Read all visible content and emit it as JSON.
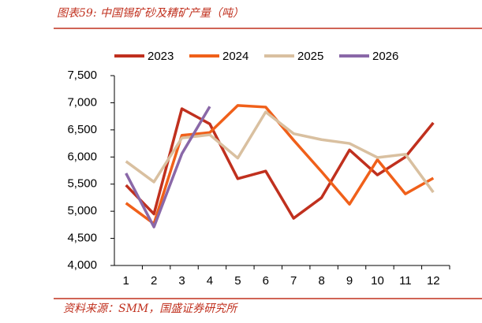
{
  "chart_data": {
    "type": "line",
    "title": "图表59:  中国锡矿砂及精矿产量（吨）",
    "source": "资料来源：SMM，国盛证券研究所",
    "categories": [
      "1",
      "2",
      "3",
      "4",
      "5",
      "6",
      "7",
      "8",
      "9",
      "10",
      "11",
      "12"
    ],
    "series": [
      {
        "name": "2023",
        "color": "#c0301e",
        "values": [
          5480,
          4950,
          6890,
          6610,
          5600,
          5740,
          4870,
          5250,
          6130,
          5670,
          6000,
          6630
        ]
      },
      {
        "name": "2024",
        "color": "#f0601a",
        "values": [
          5150,
          4770,
          6400,
          6450,
          6950,
          6920,
          6310,
          5730,
          5130,
          5950,
          5320,
          5610
        ]
      },
      {
        "name": "2025",
        "color": "#d9c0a0",
        "values": [
          5920,
          5540,
          6350,
          6410,
          5980,
          6830,
          6430,
          6320,
          6250,
          5990,
          6050,
          5350
        ]
      },
      {
        "name": "2026",
        "color": "#8a68a8",
        "values": [
          5700,
          4710,
          6060,
          6930,
          null,
          null,
          null,
          null,
          null,
          null,
          null,
          null
        ]
      }
    ],
    "ylim": [
      4000,
      7500
    ],
    "yticks": [
      {
        "value": 4000,
        "label": "4,000"
      },
      {
        "value": 4500,
        "label": "4,500"
      },
      {
        "value": 5000,
        "label": "5,000"
      },
      {
        "value": 5500,
        "label": "5,500"
      },
      {
        "value": 6000,
        "label": "6,000"
      },
      {
        "value": 6500,
        "label": "6,500"
      },
      {
        "value": 7000,
        "label": "7,000"
      },
      {
        "value": 7500,
        "label": "7,500"
      }
    ],
    "grid": false
  }
}
